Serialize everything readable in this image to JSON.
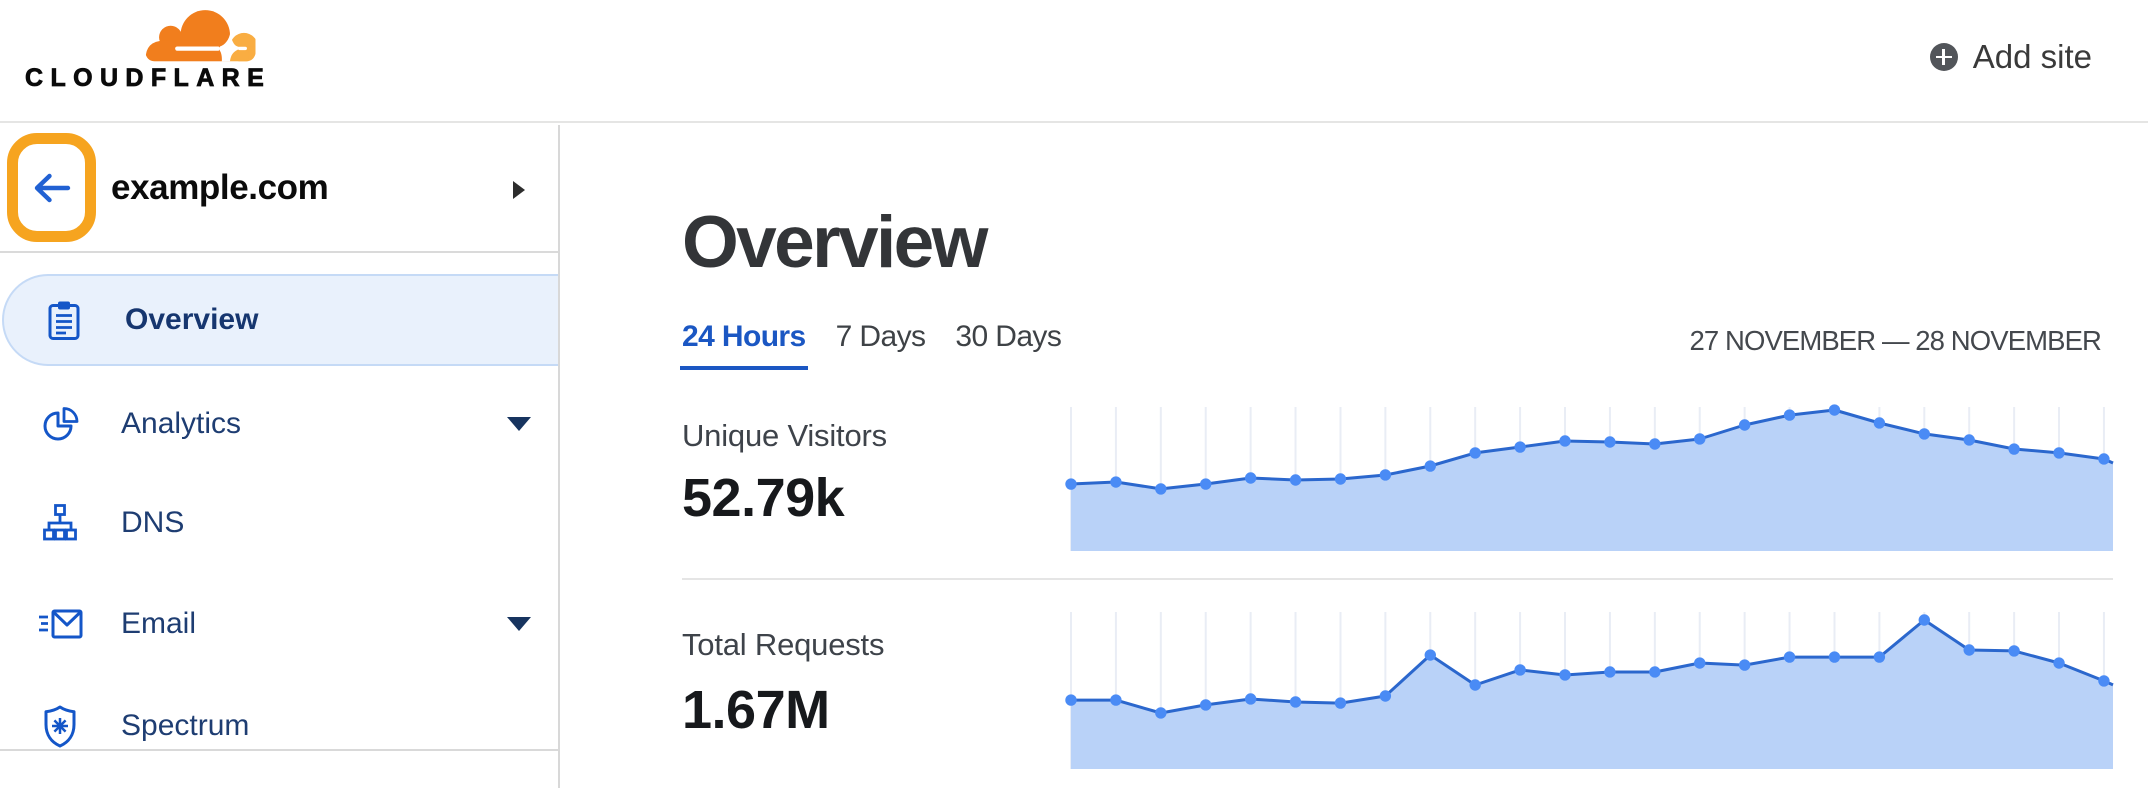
{
  "header": {
    "logo_text": "CLOUDFLARE",
    "add_site_label": "Add site"
  },
  "sidebar": {
    "site": {
      "name": "example.com"
    },
    "items": [
      {
        "label": "Overview",
        "icon": "clipboard-icon",
        "selected": true,
        "caret": false
      },
      {
        "label": "Analytics",
        "icon": "pie-chart-icon",
        "selected": false,
        "caret": true
      },
      {
        "label": "DNS",
        "icon": "dns-tree-icon",
        "selected": false,
        "caret": false
      },
      {
        "label": "Email",
        "icon": "email-icon",
        "selected": false,
        "caret": true
      },
      {
        "label": "Spectrum",
        "icon": "shield-icon",
        "selected": false,
        "caret": false
      }
    ]
  },
  "main": {
    "title": "Overview",
    "tabs": [
      {
        "label": "24 Hours",
        "active": true
      },
      {
        "label": "7 Days",
        "active": false
      },
      {
        "label": "30 Days",
        "active": false
      }
    ],
    "date_range": "27 NOVEMBER — 28 NOVEMBER"
  },
  "chart_data": [
    {
      "type": "area",
      "title": "Unique Visitors",
      "value_label": "52.79k",
      "x_unit": "hour of day (24 hourly samples)",
      "xlabel": "",
      "ylabel": "",
      "grid": "vertical gridlines at each sample",
      "legend": "none",
      "values_pct_of_plot_height": [
        46.5,
        47.9,
        43.1,
        46.5,
        50.7,
        49.3,
        50.0,
        52.8,
        59.0,
        68.1,
        72.2,
        76.4,
        75.7,
        74.3,
        77.8,
        87.5,
        94.4,
        97.9,
        88.9,
        81.3,
        77.1,
        70.8,
        68.1,
        63.9
      ]
    },
    {
      "type": "area",
      "title": "Total Requests",
      "value_label": "1.67M",
      "x_unit": "hour of day (24 hourly samples)",
      "xlabel": "",
      "ylabel": "",
      "grid": "vertical gridlines at each sample",
      "legend": "none",
      "values_pct_of_plot_height": [
        43.9,
        43.9,
        35.7,
        40.8,
        44.6,
        42.7,
        42.0,
        46.5,
        72.6,
        53.5,
        63.1,
        59.9,
        61.8,
        61.8,
        67.5,
        66.2,
        71.3,
        71.3,
        71.3,
        94.9,
        75.8,
        75.2,
        67.5,
        56.1
      ]
    }
  ],
  "colors": {
    "brand_orange": "#f48120",
    "brand_orange_light": "#faad40",
    "highlight_ring": "#f6a41f",
    "link_blue": "#1b57c3",
    "nav_icon_blue": "#1456c8",
    "nav_text": "#1e3d72",
    "selected_pill_bg": "#e9f1fc",
    "chart_line": "#2b67cd",
    "chart_dot": "#4a8bf5",
    "chart_area": "#b9d2f8",
    "chart_grid": "#e9edf5"
  }
}
